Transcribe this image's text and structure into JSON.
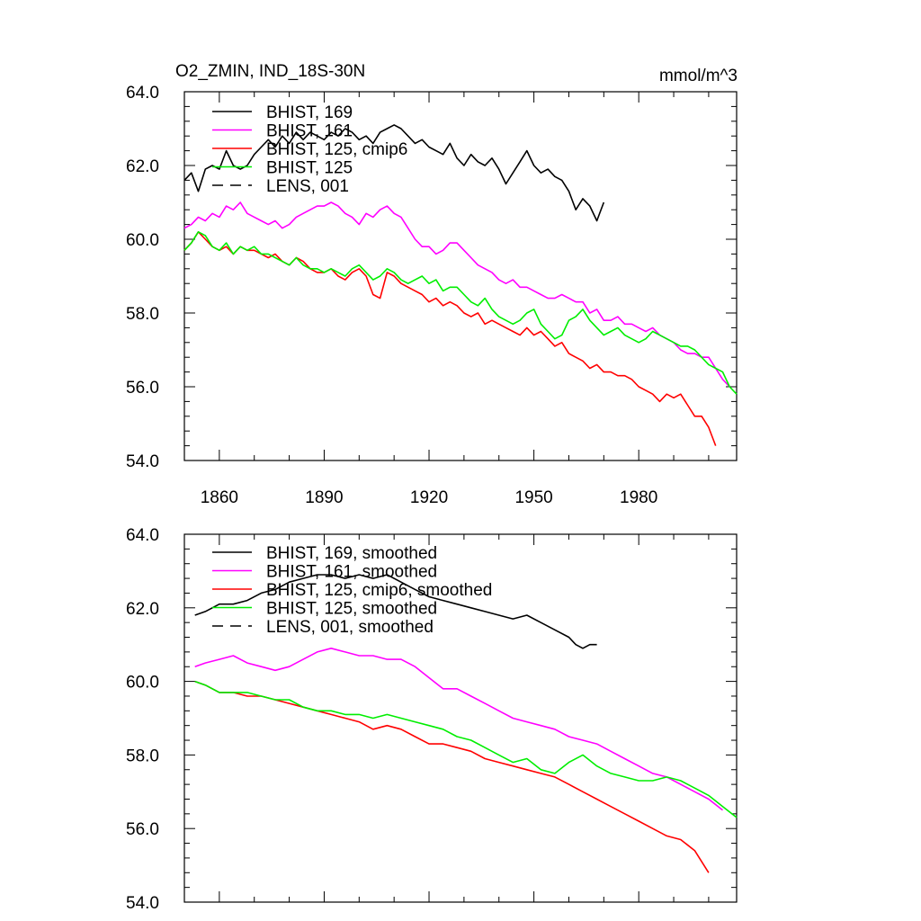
{
  "chart_data": [
    {
      "type": "line",
      "title": "O2_ZMIN, IND_18S-30N",
      "units": "mmol/m^3",
      "xlim": [
        1850,
        2008
      ],
      "ylim": [
        54,
        64
      ],
      "xticks": [
        1860,
        1890,
        1920,
        1950,
        1980
      ],
      "xtick_labels": [
        "1860",
        "1890",
        "1920",
        "1950",
        "1980"
      ],
      "yticks": [
        54,
        56,
        58,
        60,
        62,
        64
      ],
      "ytick_labels": [
        "54.0",
        "56.0",
        "58.0",
        "60.0",
        "62.0",
        "64.0"
      ],
      "legend_position": "top-left",
      "series": [
        {
          "name": "BHIST, 169",
          "color": "#000000",
          "dash": "solid",
          "x": [
            1850,
            1852,
            1854,
            1856,
            1858,
            1860,
            1862,
            1864,
            1866,
            1868,
            1870,
            1872,
            1874,
            1876,
            1878,
            1880,
            1882,
            1884,
            1886,
            1888,
            1890,
            1892,
            1894,
            1896,
            1898,
            1900,
            1902,
            1904,
            1906,
            1908,
            1910,
            1912,
            1914,
            1916,
            1918,
            1920,
            1922,
            1924,
            1926,
            1928,
            1930,
            1932,
            1934,
            1936,
            1938,
            1940,
            1942,
            1944,
            1946,
            1948,
            1950,
            1952,
            1954,
            1956,
            1958,
            1960,
            1962,
            1964,
            1966,
            1968,
            1970
          ],
          "y": [
            61.6,
            61.8,
            61.3,
            61.9,
            62.0,
            61.9,
            62.4,
            62.0,
            61.9,
            62.0,
            62.3,
            62.5,
            62.7,
            62.5,
            62.8,
            62.6,
            62.9,
            62.7,
            62.9,
            62.8,
            62.7,
            62.9,
            62.8,
            63.0,
            62.9,
            62.7,
            62.8,
            62.6,
            62.9,
            63.0,
            63.1,
            63.0,
            62.8,
            62.6,
            62.7,
            62.5,
            62.4,
            62.3,
            62.6,
            62.2,
            62.0,
            62.3,
            62.1,
            62.0,
            62.2,
            61.9,
            61.5,
            61.8,
            62.1,
            62.4,
            62.0,
            61.8,
            61.9,
            61.7,
            61.6,
            61.3,
            60.8,
            61.1,
            60.9,
            60.5,
            61.0
          ]
        },
        {
          "name": "BHIST, 161",
          "color": "#ff00ff",
          "dash": "solid",
          "x": [
            1850,
            1852,
            1854,
            1856,
            1858,
            1860,
            1862,
            1864,
            1866,
            1868,
            1870,
            1872,
            1874,
            1876,
            1878,
            1880,
            1882,
            1884,
            1886,
            1888,
            1890,
            1892,
            1894,
            1896,
            1898,
            1900,
            1902,
            1904,
            1906,
            1908,
            1910,
            1912,
            1914,
            1916,
            1918,
            1920,
            1922,
            1924,
            1926,
            1928,
            1930,
            1932,
            1934,
            1936,
            1938,
            1940,
            1942,
            1944,
            1946,
            1948,
            1950,
            1952,
            1954,
            1956,
            1958,
            1960,
            1962,
            1964,
            1966,
            1968,
            1970,
            1972,
            1974,
            1976,
            1978,
            1980,
            1982,
            1984,
            1986,
            1988,
            1990,
            1992,
            1994,
            1996,
            1998,
            2000,
            2002,
            2004,
            2006
          ],
          "y": [
            60.3,
            60.4,
            60.6,
            60.5,
            60.7,
            60.6,
            60.9,
            60.8,
            61.0,
            60.7,
            60.6,
            60.5,
            60.4,
            60.5,
            60.3,
            60.4,
            60.6,
            60.7,
            60.8,
            60.9,
            60.9,
            61.0,
            60.9,
            60.7,
            60.6,
            60.4,
            60.7,
            60.6,
            60.8,
            60.9,
            60.7,
            60.6,
            60.3,
            60.0,
            59.8,
            59.8,
            59.6,
            59.7,
            59.9,
            59.9,
            59.7,
            59.5,
            59.3,
            59.2,
            59.1,
            58.9,
            58.8,
            58.9,
            58.7,
            58.7,
            58.6,
            58.5,
            58.4,
            58.4,
            58.5,
            58.4,
            58.3,
            58.3,
            58.0,
            58.1,
            57.8,
            57.8,
            57.9,
            57.7,
            57.7,
            57.6,
            57.5,
            57.6,
            57.4,
            57.3,
            57.2,
            57.0,
            56.9,
            56.9,
            56.8,
            56.8,
            56.5,
            56.2,
            56.0
          ]
        },
        {
          "name": "BHIST, 125, cmip6",
          "color": "#ff0000",
          "dash": "solid",
          "x": [
            1850,
            1852,
            1854,
            1856,
            1858,
            1860,
            1862,
            1864,
            1866,
            1868,
            1870,
            1872,
            1874,
            1876,
            1878,
            1880,
            1882,
            1884,
            1886,
            1888,
            1890,
            1892,
            1894,
            1896,
            1898,
            1900,
            1902,
            1904,
            1906,
            1908,
            1910,
            1912,
            1914,
            1916,
            1918,
            1920,
            1922,
            1924,
            1926,
            1928,
            1930,
            1932,
            1934,
            1936,
            1938,
            1940,
            1942,
            1944,
            1946,
            1948,
            1950,
            1952,
            1954,
            1956,
            1958,
            1960,
            1962,
            1964,
            1966,
            1968,
            1970,
            1972,
            1974,
            1976,
            1978,
            1980,
            1982,
            1984,
            1986,
            1988,
            1990,
            1992,
            1994,
            1996,
            1998,
            2000,
            2002
          ],
          "y": [
            59.7,
            59.9,
            60.2,
            60.0,
            59.8,
            59.7,
            59.8,
            59.6,
            59.8,
            59.7,
            59.7,
            59.6,
            59.5,
            59.6,
            59.4,
            59.3,
            59.5,
            59.4,
            59.2,
            59.1,
            59.1,
            59.2,
            59.0,
            58.9,
            59.1,
            59.2,
            59.0,
            58.5,
            58.4,
            59.1,
            59.0,
            58.8,
            58.7,
            58.6,
            58.5,
            58.3,
            58.4,
            58.2,
            58.3,
            58.2,
            58.0,
            57.9,
            58.0,
            57.7,
            57.8,
            57.7,
            57.6,
            57.5,
            57.4,
            57.6,
            57.4,
            57.5,
            57.3,
            57.1,
            57.2,
            56.9,
            56.8,
            56.7,
            56.5,
            56.6,
            56.4,
            56.4,
            56.3,
            56.3,
            56.2,
            56.0,
            55.9,
            55.8,
            55.6,
            55.8,
            55.7,
            55.8,
            55.5,
            55.2,
            55.2,
            54.9,
            54.4
          ]
        },
        {
          "name": "BHIST, 125",
          "color": "#00ee00",
          "dash": "solid",
          "x": [
            1850,
            1852,
            1854,
            1856,
            1858,
            1860,
            1862,
            1864,
            1866,
            1868,
            1870,
            1872,
            1874,
            1876,
            1878,
            1880,
            1882,
            1884,
            1886,
            1888,
            1890,
            1892,
            1894,
            1896,
            1898,
            1900,
            1902,
            1904,
            1906,
            1908,
            1910,
            1912,
            1914,
            1916,
            1918,
            1920,
            1922,
            1924,
            1926,
            1928,
            1930,
            1932,
            1934,
            1936,
            1938,
            1940,
            1942,
            1944,
            1946,
            1948,
            1950,
            1952,
            1954,
            1956,
            1958,
            1960,
            1962,
            1964,
            1966,
            1968,
            1970,
            1972,
            1974,
            1976,
            1978,
            1980,
            1982,
            1984,
            1986,
            1988,
            1990,
            1992,
            1994,
            1996,
            1998,
            2000,
            2002,
            2004,
            2006,
            2008
          ],
          "y": [
            59.7,
            59.9,
            60.2,
            60.1,
            59.8,
            59.7,
            59.9,
            59.6,
            59.8,
            59.7,
            59.8,
            59.6,
            59.6,
            59.5,
            59.4,
            59.3,
            59.5,
            59.3,
            59.2,
            59.2,
            59.1,
            59.2,
            59.1,
            59.0,
            59.2,
            59.3,
            59.1,
            58.9,
            59.0,
            59.2,
            59.1,
            58.9,
            58.8,
            58.9,
            59.0,
            58.8,
            58.9,
            58.6,
            58.7,
            58.7,
            58.5,
            58.3,
            58.2,
            58.4,
            58.1,
            57.9,
            57.8,
            57.7,
            57.8,
            58.0,
            58.1,
            57.7,
            57.5,
            57.3,
            57.4,
            57.8,
            57.9,
            58.1,
            57.8,
            57.6,
            57.4,
            57.5,
            57.6,
            57.4,
            57.3,
            57.2,
            57.3,
            57.5,
            57.4,
            57.3,
            57.2,
            57.1,
            57.1,
            57.0,
            56.8,
            56.6,
            56.5,
            56.4,
            56.0,
            55.8
          ]
        }
      ]
    },
    {
      "type": "line",
      "title": "",
      "xlim": [
        1850,
        2008
      ],
      "ylim": [
        54,
        64
      ],
      "xticks": [
        1860,
        1890,
        1920,
        1950,
        1980
      ],
      "yticks": [
        54,
        56,
        58,
        60,
        62,
        64
      ],
      "ytick_labels": [
        "54.0",
        "56.0",
        "58.0",
        "60.0",
        "62.0",
        "64.0"
      ],
      "legend_position": "top-left",
      "series": [
        {
          "name": "BHIST, 169, smoothed",
          "color": "#000000",
          "dash": "solid",
          "x": [
            1853,
            1856,
            1860,
            1864,
            1868,
            1872,
            1876,
            1880,
            1884,
            1888,
            1892,
            1896,
            1900,
            1904,
            1908,
            1912,
            1916,
            1920,
            1924,
            1928,
            1932,
            1936,
            1940,
            1944,
            1948,
            1952,
            1956,
            1960,
            1962,
            1964,
            1966,
            1968
          ],
          "y": [
            61.8,
            61.9,
            62.1,
            62.1,
            62.2,
            62.4,
            62.5,
            62.7,
            62.8,
            62.9,
            62.9,
            62.8,
            62.9,
            62.8,
            62.9,
            62.7,
            62.5,
            62.3,
            62.2,
            62.1,
            62.0,
            61.9,
            61.8,
            61.7,
            61.8,
            61.6,
            61.4,
            61.2,
            61.0,
            60.9,
            61.0,
            61.0
          ]
        },
        {
          "name": "BHIST, 161, smoothed",
          "color": "#ff00ff",
          "dash": "solid",
          "x": [
            1853,
            1856,
            1860,
            1864,
            1868,
            1872,
            1876,
            1880,
            1884,
            1888,
            1892,
            1896,
            1900,
            1904,
            1908,
            1912,
            1916,
            1920,
            1924,
            1928,
            1932,
            1936,
            1940,
            1944,
            1948,
            1952,
            1956,
            1960,
            1964,
            1968,
            1972,
            1976,
            1980,
            1984,
            1988,
            1992,
            1996,
            2000,
            2004
          ],
          "y": [
            60.4,
            60.5,
            60.6,
            60.7,
            60.5,
            60.4,
            60.3,
            60.4,
            60.6,
            60.8,
            60.9,
            60.8,
            60.7,
            60.7,
            60.6,
            60.6,
            60.4,
            60.1,
            59.8,
            59.8,
            59.6,
            59.4,
            59.2,
            59.0,
            58.9,
            58.8,
            58.7,
            58.5,
            58.4,
            58.3,
            58.1,
            57.9,
            57.7,
            57.5,
            57.4,
            57.2,
            57.0,
            56.8,
            56.5
          ]
        },
        {
          "name": "BHIST, 125, cmip6, smoothed",
          "color": "#ff0000",
          "dash": "solid",
          "x": [
            1853,
            1856,
            1860,
            1864,
            1868,
            1872,
            1876,
            1880,
            1884,
            1888,
            1892,
            1896,
            1900,
            1904,
            1908,
            1912,
            1916,
            1920,
            1924,
            1928,
            1932,
            1936,
            1940,
            1944,
            1948,
            1952,
            1956,
            1960,
            1964,
            1968,
            1972,
            1976,
            1980,
            1984,
            1988,
            1992,
            1996,
            2000
          ],
          "y": [
            60.0,
            59.9,
            59.7,
            59.7,
            59.6,
            59.6,
            59.5,
            59.4,
            59.3,
            59.2,
            59.1,
            59.0,
            58.9,
            58.7,
            58.8,
            58.7,
            58.5,
            58.3,
            58.3,
            58.2,
            58.1,
            57.9,
            57.8,
            57.7,
            57.6,
            57.5,
            57.4,
            57.2,
            57.0,
            56.8,
            56.6,
            56.4,
            56.2,
            56.0,
            55.8,
            55.7,
            55.4,
            54.8
          ]
        },
        {
          "name": "BHIST, 125, smoothed",
          "color": "#00ee00",
          "dash": "solid",
          "x": [
            1853,
            1856,
            1860,
            1864,
            1868,
            1872,
            1876,
            1880,
            1884,
            1888,
            1892,
            1896,
            1900,
            1904,
            1908,
            1912,
            1916,
            1920,
            1924,
            1928,
            1932,
            1936,
            1940,
            1944,
            1948,
            1952,
            1956,
            1960,
            1964,
            1968,
            1972,
            1976,
            1980,
            1984,
            1988,
            1992,
            1996,
            2000,
            2004,
            2008
          ],
          "y": [
            60.0,
            59.9,
            59.7,
            59.7,
            59.7,
            59.6,
            59.5,
            59.5,
            59.3,
            59.2,
            59.2,
            59.1,
            59.1,
            59.0,
            59.1,
            59.0,
            58.9,
            58.8,
            58.7,
            58.5,
            58.4,
            58.2,
            58.0,
            57.8,
            57.9,
            57.6,
            57.5,
            57.8,
            58.0,
            57.7,
            57.5,
            57.4,
            57.3,
            57.3,
            57.4,
            57.3,
            57.1,
            56.9,
            56.6,
            56.3
          ]
        }
      ]
    }
  ],
  "legend_extra": [
    {
      "name": "LENS, 001",
      "color": "#000000",
      "dash": "dashed"
    },
    {
      "name": "LENS, 001, smoothed",
      "color": "#000000",
      "dash": "dashed"
    }
  ]
}
